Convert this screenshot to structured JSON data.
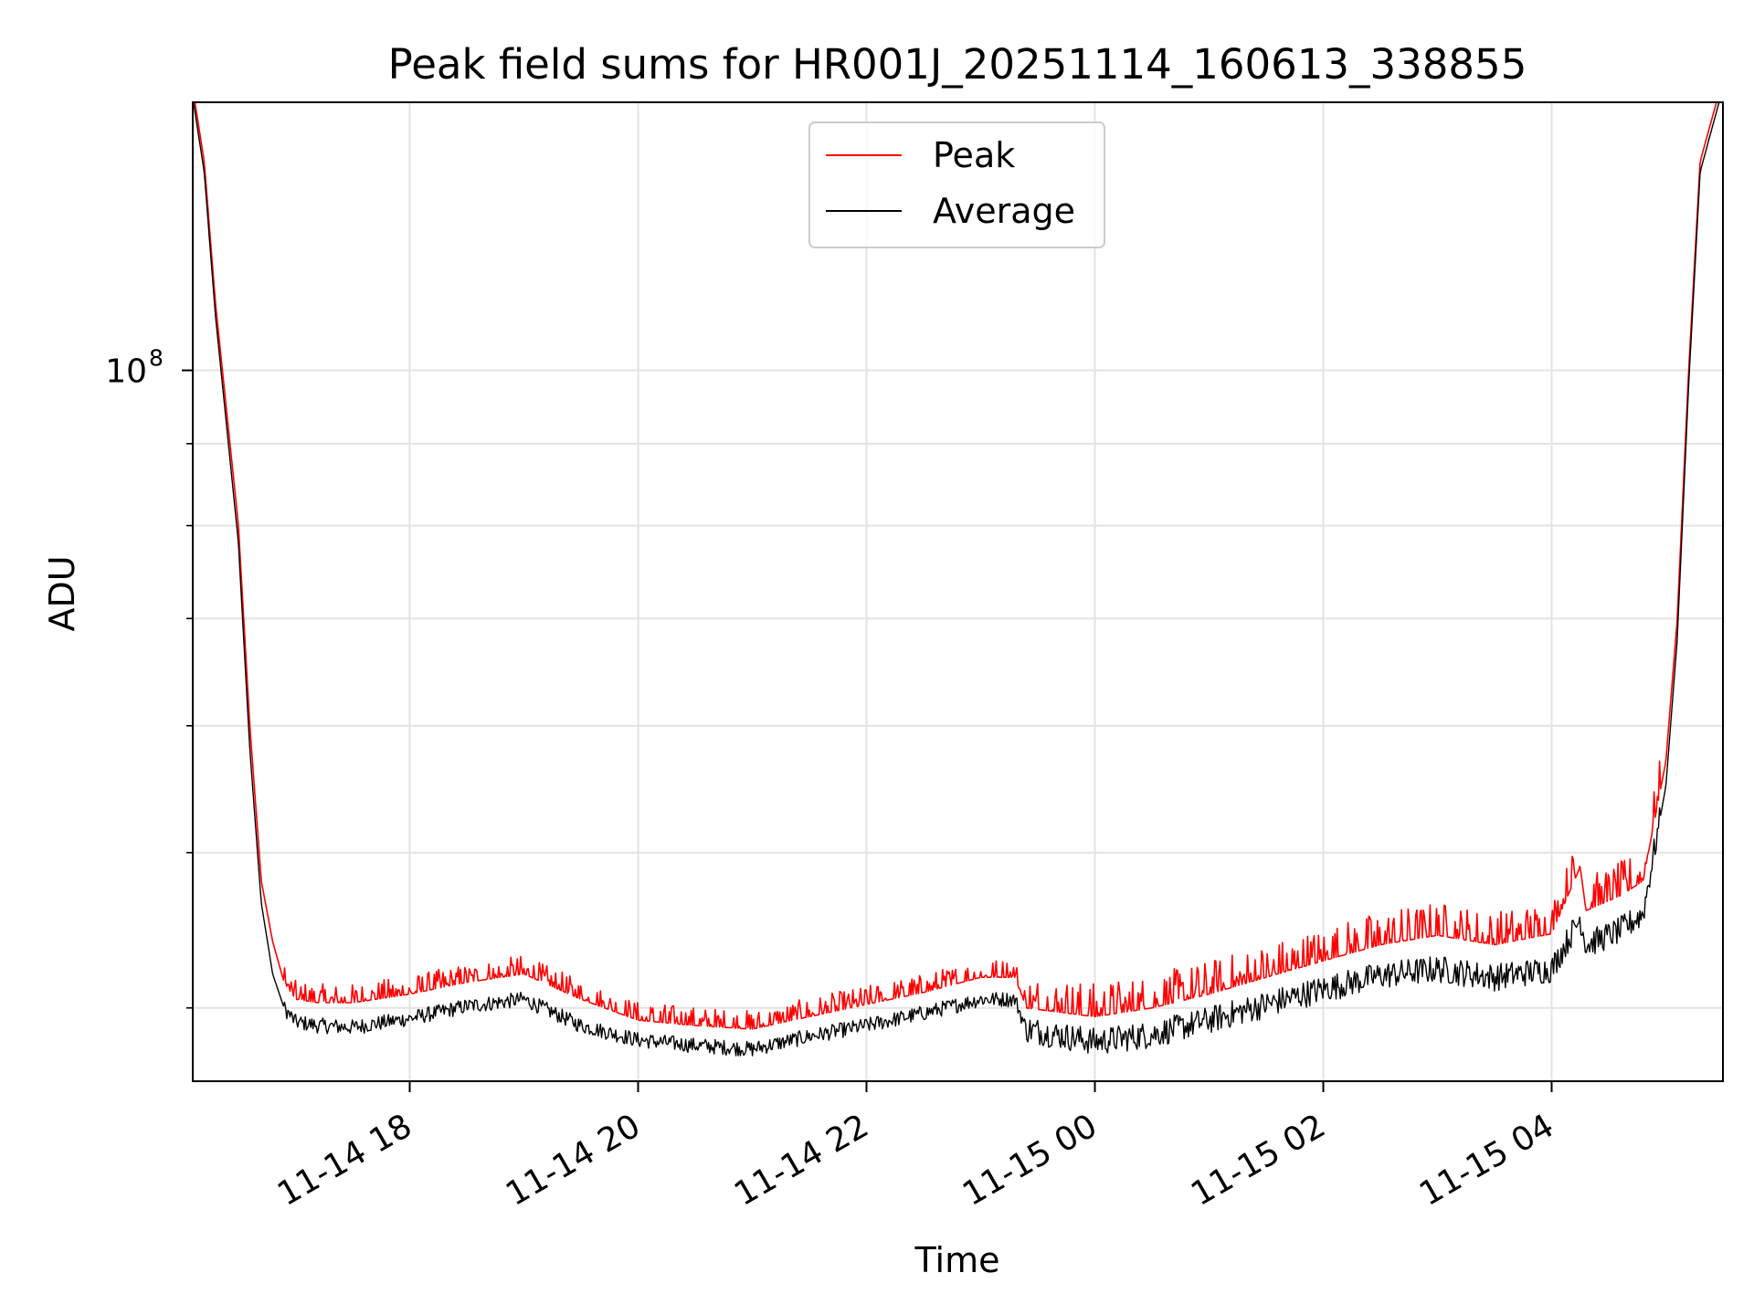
{
  "chart_data": {
    "type": "line",
    "title": "Peak field sums for HR001J_20251114_160613_338855",
    "xlabel": "Time",
    "ylabel": "ADU",
    "yscale": "log",
    "grid": true,
    "legend_position": "top-center",
    "x_unit": "hours since 11-14 00:00",
    "xlim": [
      16.1,
      29.5
    ],
    "ylim": [
      36000000,
      147000000
    ],
    "x_ticks": [
      {
        "value": 18,
        "label": "11-14 18"
      },
      {
        "value": 20,
        "label": "11-14 20"
      },
      {
        "value": 22,
        "label": "11-14 22"
      },
      {
        "value": 24,
        "label": "11-15 00"
      },
      {
        "value": 26,
        "label": "11-15 02"
      },
      {
        "value": 28,
        "label": "11-15 04"
      }
    ],
    "y_tick_major": {
      "value": 100000000,
      "base": "10",
      "exponent": "8"
    },
    "y_minor_ticks": [
      40000000,
      50000000,
      60000000,
      70000000,
      80000000,
      90000000,
      200000000
    ],
    "legend": [
      {
        "name": "Peak",
        "color": "#ff0000"
      },
      {
        "name": "Average",
        "color": "#000000"
      }
    ],
    "series": [
      {
        "name": "Peak",
        "color": "#ff0000",
        "x": [
          16.1,
          16.2,
          16.3,
          16.5,
          16.6,
          16.7,
          16.8,
          16.9,
          17.0,
          17.2,
          17.5,
          18.0,
          18.5,
          19.0,
          19.5,
          20.0,
          20.5,
          21.0,
          21.5,
          22.0,
          22.5,
          23.0,
          23.3,
          23.4,
          24.0,
          24.5,
          25.0,
          25.5,
          26.0,
          26.5,
          27.0,
          27.5,
          28.0,
          28.25,
          28.3,
          28.6,
          28.8,
          29.0,
          29.1,
          29.2,
          29.3,
          29.5
        ],
        "y": [
          150000000,
          135000000,
          110000000,
          80000000,
          60000000,
          48000000,
          44000000,
          41500000,
          40500000,
          40300000,
          40300000,
          40800000,
          41500000,
          42000000,
          40500000,
          39300000,
          39000000,
          38800000,
          39500000,
          40200000,
          40900000,
          41800000,
          41800000,
          40000000,
          39500000,
          40000000,
          40800000,
          41800000,
          42800000,
          43800000,
          44400000,
          43800000,
          44500000,
          49000000,
          46000000,
          47000000,
          48000000,
          57000000,
          70000000,
          100000000,
          135000000,
          152000000
        ]
      },
      {
        "name": "Average",
        "color": "#000000",
        "x": [
          16.1,
          16.2,
          16.3,
          16.5,
          16.6,
          16.7,
          16.8,
          16.9,
          17.0,
          17.2,
          17.5,
          18.0,
          18.5,
          19.0,
          19.5,
          20.0,
          20.5,
          21.0,
          21.5,
          22.0,
          22.5,
          23.0,
          23.3,
          23.4,
          24.0,
          24.5,
          25.0,
          25.5,
          26.0,
          26.5,
          27.0,
          27.5,
          28.0,
          28.25,
          28.3,
          28.6,
          28.8,
          29.0,
          29.1,
          29.2,
          29.3,
          29.5
        ],
        "y": [
          148000000,
          133000000,
          108000000,
          78000000,
          58000000,
          46500000,
          42000000,
          40000000,
          39200000,
          39000000,
          38900000,
          39400000,
          40100000,
          40500000,
          39000000,
          38200000,
          37900000,
          37700000,
          38400000,
          39000000,
          39700000,
          40500000,
          40500000,
          38800000,
          38100000,
          38500000,
          39300000,
          40200000,
          41100000,
          41900000,
          42300000,
          41800000,
          42300000,
          45500000,
          43800000,
          44700000,
          45800000,
          55000000,
          68000000,
          98000000,
          133000000,
          150000000
        ]
      }
    ]
  }
}
